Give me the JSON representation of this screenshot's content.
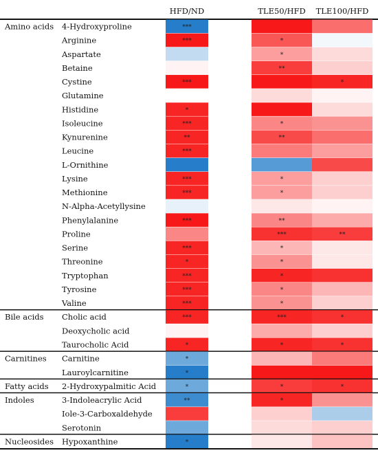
{
  "chart_data": {
    "type": "heatmap",
    "columns": [
      "HFD/ND",
      "TLE50/HFD",
      "TLE100/HFD"
    ],
    "groups": [
      {
        "name": "Amino acids",
        "rows": [
          {
            "name": "4-Hydroxyproline",
            "values": [
              -0.9,
              0.95,
              0.6
            ],
            "sig": [
              "***",
              "",
              ""
            ]
          },
          {
            "name": "Arginine",
            "values": [
              0.95,
              0.7,
              -0.05
            ],
            "sig": [
              "***",
              "*",
              ""
            ]
          },
          {
            "name": "Aspartate",
            "values": [
              -0.25,
              0.4,
              0.15
            ],
            "sig": [
              "",
              "*",
              ""
            ]
          },
          {
            "name": "Betaine",
            "values": [
              0.05,
              0.8,
              0.2
            ],
            "sig": [
              "",
              "**",
              ""
            ]
          },
          {
            "name": "Cystine",
            "values": [
              0.95,
              0.95,
              0.9
            ],
            "sig": [
              "***",
              "",
              "*"
            ]
          },
          {
            "name": "Glutamine",
            "values": [
              0.0,
              0.15,
              0.05
            ],
            "sig": [
              "",
              "",
              ""
            ]
          },
          {
            "name": "Histidine",
            "values": [
              0.9,
              0.95,
              0.15
            ],
            "sig": [
              "*",
              "",
              ""
            ]
          },
          {
            "name": "Isoleucine",
            "values": [
              0.9,
              0.5,
              0.45
            ],
            "sig": [
              "***",
              "*",
              ""
            ]
          },
          {
            "name": "Kynurenine",
            "values": [
              0.9,
              0.75,
              0.6
            ],
            "sig": [
              "**",
              "**",
              ""
            ]
          },
          {
            "name": "Leucine",
            "values": [
              0.9,
              0.55,
              0.4
            ],
            "sig": [
              "***",
              "",
              ""
            ]
          },
          {
            "name": "L-Ornithine",
            "values": [
              -0.9,
              -0.7,
              0.75
            ],
            "sig": [
              "",
              "",
              ""
            ]
          },
          {
            "name": "Lysine",
            "values": [
              0.9,
              0.4,
              0.2
            ],
            "sig": [
              "***",
              "*",
              ""
            ]
          },
          {
            "name": "Methionine",
            "values": [
              0.9,
              0.4,
              0.2
            ],
            "sig": [
              "***",
              "*",
              ""
            ]
          },
          {
            "name": "N-Alpha-Acetyllysine",
            "values": [
              -0.1,
              0.1,
              0.05
            ],
            "sig": [
              "",
              "",
              ""
            ]
          },
          {
            "name": "Phenylalanine",
            "values": [
              0.95,
              0.5,
              0.35
            ],
            "sig": [
              "***",
              "**",
              ""
            ]
          },
          {
            "name": "Proline",
            "values": [
              0.5,
              0.85,
              0.8
            ],
            "sig": [
              "",
              "***",
              "**"
            ]
          },
          {
            "name": "Serine",
            "values": [
              0.9,
              0.3,
              0.1
            ],
            "sig": [
              "***",
              "*",
              ""
            ]
          },
          {
            "name": "Threonine",
            "values": [
              0.9,
              0.45,
              0.1
            ],
            "sig": [
              "*",
              "*",
              ""
            ]
          },
          {
            "name": "Tryptophan",
            "values": [
              0.9,
              0.9,
              0.85
            ],
            "sig": [
              "***",
              "*",
              ""
            ]
          },
          {
            "name": "Tyrosine",
            "values": [
              0.9,
              0.5,
              0.3
            ],
            "sig": [
              "***",
              "*",
              ""
            ]
          },
          {
            "name": "Valine",
            "values": [
              0.9,
              0.45,
              0.2
            ],
            "sig": [
              "***",
              "*",
              ""
            ]
          }
        ]
      },
      {
        "name": "Bile acids",
        "rows": [
          {
            "name": "Cholic acid",
            "values": [
              0.9,
              0.9,
              0.85
            ],
            "sig": [
              "***",
              "***",
              "*"
            ]
          },
          {
            "name": "Deoxycholic acid",
            "values": [
              0.05,
              0.35,
              0.2
            ],
            "sig": [
              "",
              "",
              ""
            ]
          },
          {
            "name": "Taurocholic Acid",
            "values": [
              0.9,
              0.9,
              0.85
            ],
            "sig": [
              "*",
              "*",
              "*"
            ]
          }
        ]
      },
      {
        "name": "Carnitines",
        "rows": [
          {
            "name": "Carnitine",
            "values": [
              -0.6,
              0.3,
              0.55
            ],
            "sig": [
              "*",
              "",
              ""
            ]
          },
          {
            "name": "Lauroylcarnitine",
            "values": [
              -0.9,
              0.95,
              0.95
            ],
            "sig": [
              "*",
              "",
              ""
            ]
          }
        ]
      },
      {
        "name": "Fatty acids",
        "rows": [
          {
            "name": "2-Hydroxypalmitic Acid",
            "values": [
              -0.6,
              0.8,
              0.85
            ],
            "sig": [
              "*",
              "*",
              "*"
            ]
          }
        ]
      },
      {
        "name": "Indoles",
        "rows": [
          {
            "name": "3-Indoleacrylic Acid",
            "values": [
              -0.8,
              0.9,
              0.45
            ],
            "sig": [
              "**",
              "*",
              ""
            ]
          },
          {
            "name": "Iole-3-Carboxaldehyde",
            "values": [
              0.8,
              0.2,
              -0.35
            ],
            "sig": [
              "",
              "",
              ""
            ]
          },
          {
            "name": "Serotonin",
            "values": [
              -0.6,
              0.15,
              0.2
            ],
            "sig": [
              "",
              "",
              ""
            ]
          }
        ]
      },
      {
        "name": "Nucleosides",
        "rows": [
          {
            "name": "Hypoxanthine",
            "values": [
              -0.9,
              0.1,
              0.25
            ],
            "sig": [
              "*",
              "",
              ""
            ]
          }
        ]
      }
    ],
    "color_scale": {
      "negative": "#0e6fc4",
      "neutral": "#ffffff",
      "positive": "#f70d0d"
    }
  }
}
